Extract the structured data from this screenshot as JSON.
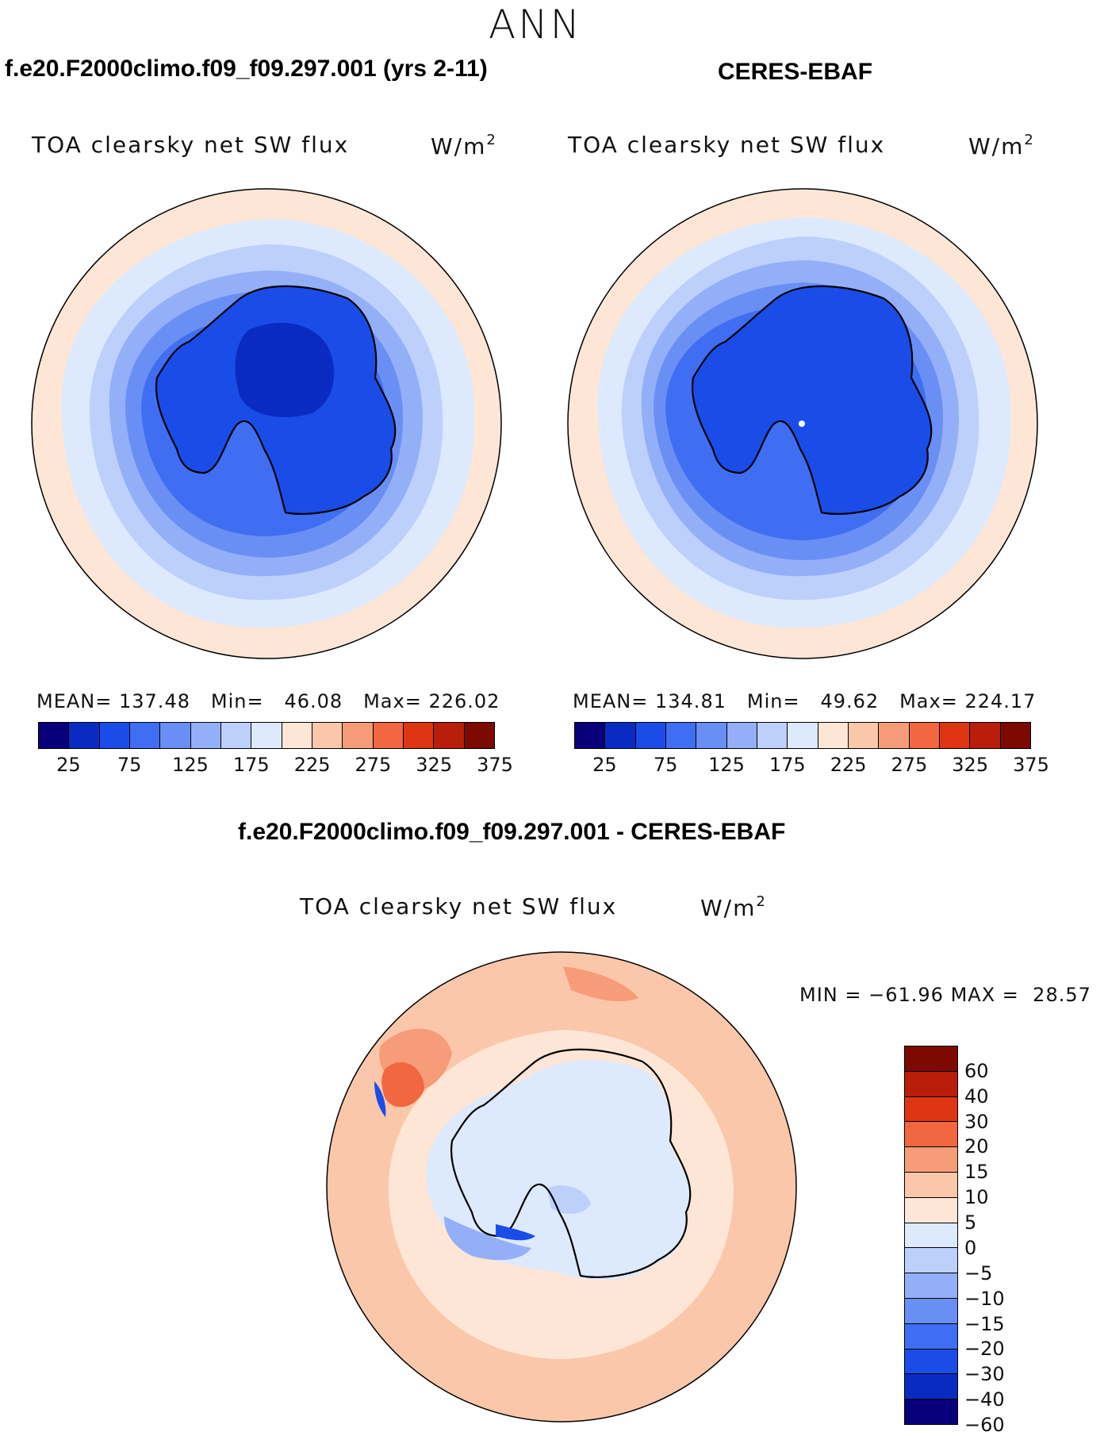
{
  "season": "ANN",
  "colors": {
    "abs_levels": [
      "#08007a",
      "#0a2bc2",
      "#1a4de8",
      "#3f6ef2",
      "#6a8ff4",
      "#93aff7",
      "#bdd0fb",
      "#dde9fc",
      "#fde6d6",
      "#fbc7ab",
      "#f79c79",
      "#f1673f",
      "#de3612",
      "#b81e0a",
      "#7c0a00"
    ],
    "diff_levels": [
      "#7c0a00",
      "#b81e0a",
      "#de3612",
      "#f1673f",
      "#f79c79",
      "#fbc7ab",
      "#fde6d6",
      "#dde9fc",
      "#bdd0fb",
      "#93aff7",
      "#6a8ff4",
      "#3f6ef2",
      "#1a4de8",
      "#0a2bc2",
      "#08007a"
    ]
  },
  "panels": {
    "model": {
      "case_title": "f.e20.F2000climo.f09_f09.297.001 (yrs 2-11)",
      "var_title": "TOA clearsky net SW flux",
      "units_base": "W/m",
      "units_exp": "2",
      "mean_label": "MEAN=",
      "mean": "137.48",
      "min_label": "Min=",
      "min": "46.08",
      "max_label": "Max=",
      "max": "226.02",
      "ticks": [
        "25",
        "75",
        "125",
        "175",
        "225",
        "275",
        "325",
        "375"
      ]
    },
    "obs": {
      "case_title": "CERES-EBAF",
      "var_title": "TOA clearsky net SW flux",
      "units_base": "W/m",
      "units_exp": "2",
      "mean_label": "MEAN=",
      "mean": "134.81",
      "min_label": "Min=",
      "min": "49.62",
      "max_label": "Max=",
      "max": "224.17",
      "ticks": [
        "25",
        "75",
        "125",
        "175",
        "225",
        "275",
        "325",
        "375"
      ]
    },
    "diff": {
      "case_title": "f.e20.F2000climo.f09_f09.297.001 - CERES-EBAF",
      "var_title": "TOA clearsky net SW flux",
      "units_base": "W/m",
      "units_exp": "2",
      "min_label": "MIN =",
      "min": "−61.96",
      "max_label": "MAX =",
      "max": "28.57",
      "ticks": [
        "60",
        "40",
        "30",
        "20",
        "15",
        "10",
        "5",
        "0",
        "−5",
        "−10",
        "−15",
        "−20",
        "−30",
        "−40",
        "−60"
      ]
    }
  }
}
